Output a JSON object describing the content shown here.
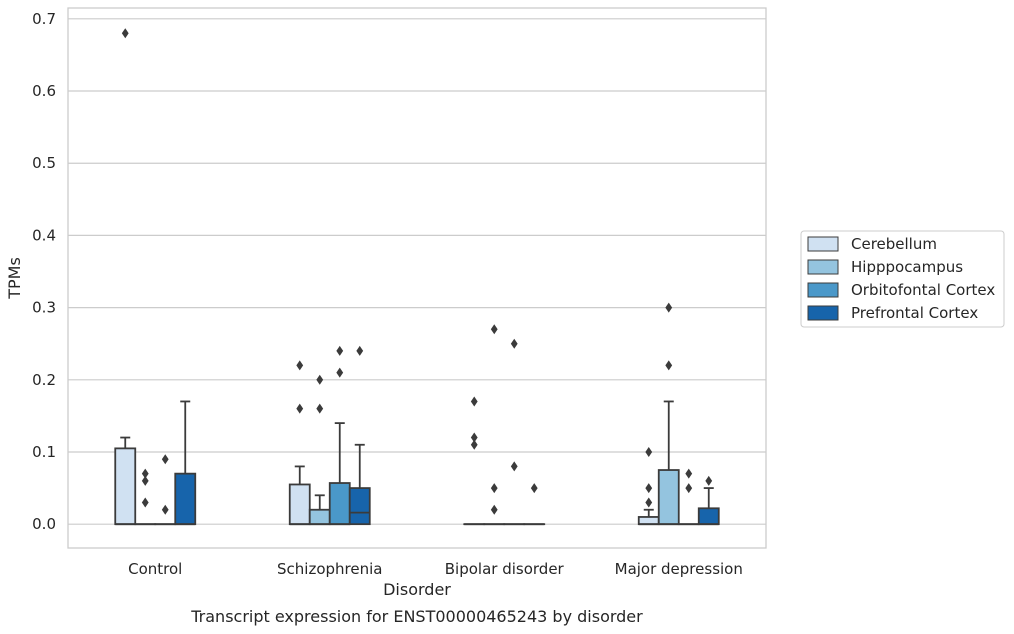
{
  "caption": "Transcript expression for ENST00000465243 by disorder",
  "colors": {
    "Cerebellum": "#d0e1f2",
    "Hipppocampus": "#94c4df",
    "Orbitofontal Cortex": "#4a98c9",
    "Prefrontal Cortex": "#1764ab",
    "box_edge": "#3b3b3b",
    "grid": "#cccccc"
  },
  "chart_data": {
    "type": "box",
    "title": "",
    "xlabel": "Disorder",
    "ylabel": "TPMs",
    "ylim": [
      -0.033,
      0.715
    ],
    "yticks": [
      0.0,
      0.1,
      0.2,
      0.3,
      0.4,
      0.5,
      0.6,
      0.7
    ],
    "ytick_labels": [
      "0.0",
      "0.1",
      "0.2",
      "0.3",
      "0.4",
      "0.5",
      "0.6",
      "0.7"
    ],
    "grid": true,
    "legend_position": "right",
    "categories": [
      "Control",
      "Schizophrenia",
      "Bipolar disorder",
      "Major depression"
    ],
    "hues": [
      "Cerebellum",
      "Hipppocampus",
      "Orbitofontal Cortex",
      "Prefrontal Cortex"
    ],
    "boxes": [
      {
        "category": "Control",
        "hue": "Cerebellum",
        "q1": 0.0,
        "median": 0.0,
        "q3": 0.105,
        "whisker_low": 0.0,
        "whisker_high": 0.12,
        "outliers": [
          0.68
        ]
      },
      {
        "category": "Control",
        "hue": "Hipppocampus",
        "q1": 0.0,
        "median": 0.0,
        "q3": 0.0,
        "whisker_low": 0.0,
        "whisker_high": 0.0,
        "outliers": [
          0.07,
          0.06,
          0.03
        ]
      },
      {
        "category": "Control",
        "hue": "Orbitofontal Cortex",
        "q1": 0.0,
        "median": 0.0,
        "q3": 0.0,
        "whisker_low": 0.0,
        "whisker_high": 0.0,
        "outliers": [
          0.09,
          0.02
        ]
      },
      {
        "category": "Control",
        "hue": "Prefrontal Cortex",
        "q1": 0.0,
        "median": 0.0,
        "q3": 0.07,
        "whisker_low": 0.0,
        "whisker_high": 0.17,
        "outliers": []
      },
      {
        "category": "Schizophrenia",
        "hue": "Cerebellum",
        "q1": 0.0,
        "median": 0.0,
        "q3": 0.055,
        "whisker_low": 0.0,
        "whisker_high": 0.08,
        "outliers": [
          0.22,
          0.16
        ]
      },
      {
        "category": "Schizophrenia",
        "hue": "Hipppocampus",
        "q1": 0.0,
        "median": 0.0,
        "q3": 0.02,
        "whisker_low": 0.0,
        "whisker_high": 0.04,
        "outliers": [
          0.2,
          0.16
        ]
      },
      {
        "category": "Schizophrenia",
        "hue": "Orbitofontal Cortex",
        "q1": 0.0,
        "median": 0.0,
        "q3": 0.057,
        "whisker_low": 0.0,
        "whisker_high": 0.14,
        "outliers": [
          0.24,
          0.21
        ]
      },
      {
        "category": "Schizophrenia",
        "hue": "Prefrontal Cortex",
        "q1": 0.0,
        "median": 0.016,
        "q3": 0.05,
        "whisker_low": 0.0,
        "whisker_high": 0.11,
        "outliers": [
          0.24
        ]
      },
      {
        "category": "Bipolar disorder",
        "hue": "Cerebellum",
        "q1": 0.0,
        "median": 0.0,
        "q3": 0.0,
        "whisker_low": 0.0,
        "whisker_high": 0.0,
        "outliers": [
          0.17,
          0.12,
          0.11
        ]
      },
      {
        "category": "Bipolar disorder",
        "hue": "Hipppocampus",
        "q1": 0.0,
        "median": 0.0,
        "q3": 0.0,
        "whisker_low": 0.0,
        "whisker_high": 0.0,
        "outliers": [
          0.27,
          0.05,
          0.02
        ]
      },
      {
        "category": "Bipolar disorder",
        "hue": "Orbitofontal Cortex",
        "q1": 0.0,
        "median": 0.0,
        "q3": 0.0,
        "whisker_low": 0.0,
        "whisker_high": 0.0,
        "outliers": [
          0.25,
          0.08
        ]
      },
      {
        "category": "Bipolar disorder",
        "hue": "Prefrontal Cortex",
        "q1": 0.0,
        "median": 0.0,
        "q3": 0.0,
        "whisker_low": 0.0,
        "whisker_high": 0.0,
        "outliers": [
          0.05
        ]
      },
      {
        "category": "Major depression",
        "hue": "Cerebellum",
        "q1": 0.0,
        "median": 0.0,
        "q3": 0.01,
        "whisker_low": 0.0,
        "whisker_high": 0.02,
        "outliers": [
          0.1,
          0.05,
          0.03
        ]
      },
      {
        "category": "Major depression",
        "hue": "Hipppocampus",
        "q1": 0.0,
        "median": 0.0,
        "q3": 0.075,
        "whisker_low": 0.0,
        "whisker_high": 0.17,
        "outliers": [
          0.3,
          0.22
        ]
      },
      {
        "category": "Major depression",
        "hue": "Orbitofontal Cortex",
        "q1": 0.0,
        "median": 0.0,
        "q3": 0.0,
        "whisker_low": 0.0,
        "whisker_high": 0.0,
        "outliers": [
          0.07,
          0.05
        ]
      },
      {
        "category": "Major depression",
        "hue": "Prefrontal Cortex",
        "q1": 0.0,
        "median": 0.0,
        "q3": 0.022,
        "whisker_low": 0.0,
        "whisker_high": 0.05,
        "outliers": [
          0.06
        ]
      }
    ]
  }
}
